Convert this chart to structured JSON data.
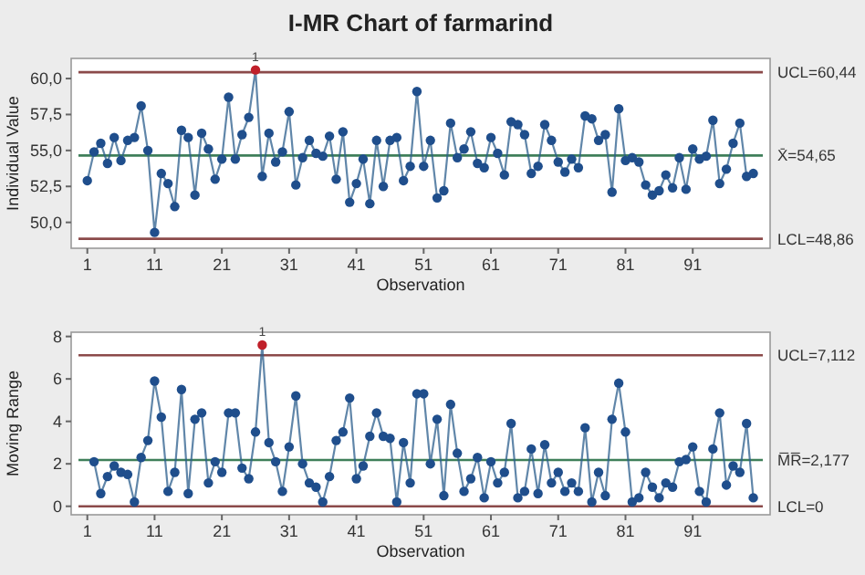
{
  "chart_data": [
    {
      "type": "line",
      "title": "I-MR Chart of farmarind",
      "xlabel": "Observation",
      "ylabel": "Individual Value",
      "x": [
        1,
        2,
        3,
        4,
        5,
        6,
        7,
        8,
        9,
        10,
        11,
        12,
        13,
        14,
        15,
        16,
        17,
        18,
        19,
        20,
        21,
        22,
        23,
        24,
        25,
        26,
        27,
        28,
        29,
        30,
        31,
        32,
        33,
        34,
        35,
        36,
        37,
        38,
        39,
        40,
        41,
        42,
        43,
        44,
        45,
        46,
        47,
        48,
        49,
        50,
        51,
        52,
        53,
        54,
        55,
        56,
        57,
        58,
        59,
        60,
        61,
        62,
        63,
        64,
        65,
        66,
        67,
        68,
        69,
        70,
        71,
        72,
        73,
        74,
        75,
        76,
        77,
        78,
        79,
        80,
        81,
        82,
        83,
        84,
        85,
        86,
        87,
        88,
        89,
        90,
        91,
        92,
        93,
        94,
        95,
        96,
        97,
        98,
        99,
        100
      ],
      "series": [
        {
          "color": "#2b5d8c",
          "values": [
            52.9,
            54.9,
            55.5,
            54.1,
            55.9,
            54.3,
            55.7,
            55.9,
            58.1,
            55.0,
            49.3,
            53.4,
            52.7,
            51.1,
            56.4,
            55.9,
            51.9,
            56.2,
            55.1,
            53.0,
            54.4,
            58.7,
            54.4,
            56.1,
            57.3,
            60.6,
            53.2,
            56.2,
            54.2,
            54.9,
            57.7,
            52.6,
            54.5,
            55.7,
            54.8,
            54.6,
            56.0,
            53.0,
            56.3,
            51.4,
            52.7,
            54.4,
            51.3,
            55.7,
            52.5,
            55.7,
            55.9,
            52.9,
            53.9,
            59.1,
            53.9,
            55.7,
            51.7,
            52.2,
            56.9,
            54.5,
            55.1,
            56.3,
            54.1,
            53.8,
            55.9,
            54.8,
            53.3,
            57.0,
            56.8,
            56.1,
            53.4,
            53.9,
            56.8,
            55.7,
            54.2,
            53.5,
            54.4,
            53.8,
            57.4,
            57.2,
            55.7,
            56.1,
            52.1,
            57.9,
            54.3,
            54.5,
            54.2,
            52.6,
            51.9,
            52.2,
            53.3,
            52.4,
            54.5,
            52.3,
            55.1,
            54.4,
            54.6,
            57.1,
            52.7,
            53.7,
            55.5,
            56.9,
            53.2,
            53.4
          ],
          "colors": [
            "#1f4e8c",
            "#1f4e8c",
            "#1f4e8c",
            "#1f4e8c",
            "#1f4e8c",
            "#1f4e8c",
            "#1f4e8c",
            "#1f4e8c",
            "#1f4e8c",
            "#1f4e8c",
            "#1f4e8c",
            "#1f4e8c",
            "#1f4e8c",
            "#1f4e8c",
            "#1f4e8c",
            "#1f4e8c",
            "#1f4e8c",
            "#1f4e8c",
            "#1f4e8c",
            "#1f4e8c",
            "#1f4e8c",
            "#1f4e8c",
            "#1f4e8c",
            "#1f4e8c",
            "#1f4e8c",
            "#c0202a",
            "#1f4e8c",
            "#1f4e8c",
            "#1f4e8c",
            "#1f4e8c",
            "#1f4e8c",
            "#1f4e8c",
            "#1f4e8c",
            "#1f4e8c",
            "#1f4e8c",
            "#1f4e8c",
            "#1f4e8c",
            "#1f4e8c",
            "#1f4e8c",
            "#1f4e8c",
            "#1f4e8c",
            "#1f4e8c",
            "#1f4e8c",
            "#1f4e8c",
            "#1f4e8c",
            "#1f4e8c",
            "#1f4e8c",
            "#1f4e8c",
            "#1f4e8c",
            "#1f4e8c",
            "#1f4e8c",
            "#1f4e8c",
            "#1f4e8c",
            "#1f4e8c",
            "#1f4e8c",
            "#1f4e8c",
            "#1f4e8c",
            "#1f4e8c",
            "#1f4e8c",
            "#1f4e8c",
            "#1f4e8c",
            "#1f4e8c",
            "#1f4e8c",
            "#1f4e8c",
            "#1f4e8c",
            "#1f4e8c",
            "#1f4e8c",
            "#1f4e8c",
            "#1f4e8c",
            "#1f4e8c",
            "#1f4e8c",
            "#1f4e8c",
            "#1f4e8c",
            "#1f4e8c",
            "#1f4e8c",
            "#1f4e8c",
            "#1f4e8c",
            "#1f4e8c",
            "#1f4e8c",
            "#1f4e8c",
            "#1f4e8c",
            "#1f4e8c",
            "#1f4e8c",
            "#1f4e8c",
            "#1f4e8c",
            "#1f4e8c",
            "#1f4e8c",
            "#1f4e8c",
            "#1f4e8c",
            "#1f4e8c",
            "#1f4e8c",
            "#1f4e8c",
            "#1f4e8c",
            "#1f4e8c",
            "#1f4e8c",
            "#1f4e8c",
            "#1f4e8c",
            "#1f4e8c",
            "#1f4e8c",
            "#1f4e8c"
          ]
        }
      ],
      "xlim": [
        -1.4,
        102.5
      ],
      "xticks": [
        1,
        11,
        21,
        31,
        41,
        51,
        61,
        71,
        81,
        91
      ],
      "ylim": [
        48.2,
        61.4
      ],
      "yticks": [
        {
          "value": 50,
          "label": "50,0"
        },
        {
          "value": 52.5,
          "label": "52,5"
        },
        {
          "value": 55,
          "label": "55,0"
        },
        {
          "value": 57.5,
          "label": "57,5"
        },
        {
          "value": 60,
          "label": "60,0"
        }
      ],
      "ref_lines": [
        {
          "axis": "y",
          "value": 60.44,
          "label": "UCL=60,44",
          "color": "#8b4a4a"
        },
        {
          "axis": "y",
          "value": 54.65,
          "label": "X̄=54,65",
          "color": "#3f7f5a"
        },
        {
          "axis": "y",
          "value": 48.86,
          "label": "LCL=48,86",
          "color": "#8b4a4a"
        }
      ],
      "annotations": [
        {
          "text": "1",
          "x": 26,
          "y": 60.6
        }
      ],
      "marker": "circle",
      "line_style": "solid",
      "grid": false
    },
    {
      "type": "line",
      "xlabel": "Observation",
      "ylabel": "Moving Range",
      "x": [
        2,
        3,
        4,
        5,
        6,
        7,
        8,
        9,
        10,
        11,
        12,
        13,
        14,
        15,
        16,
        17,
        18,
        19,
        20,
        21,
        22,
        23,
        24,
        25,
        26,
        27,
        28,
        29,
        30,
        31,
        32,
        33,
        34,
        35,
        36,
        37,
        38,
        39,
        40,
        41,
        42,
        43,
        44,
        45,
        46,
        47,
        48,
        49,
        50,
        51,
        52,
        53,
        54,
        55,
        56,
        57,
        58,
        59,
        60,
        61,
        62,
        63,
        64,
        65,
        66,
        67,
        68,
        69,
        70,
        71,
        72,
        73,
        74,
        75,
        76,
        77,
        78,
        79,
        80,
        81,
        82,
        83,
        84,
        85,
        86,
        87,
        88,
        89,
        90,
        91,
        92,
        93,
        94,
        95,
        96,
        97,
        98,
        99,
        100
      ],
      "series": [
        {
          "color": "#2b5d8c",
          "values": [
            2.1,
            0.6,
            1.4,
            1.9,
            1.6,
            1.5,
            0.2,
            2.3,
            3.1,
            5.9,
            4.2,
            0.7,
            1.6,
            5.5,
            0.6,
            4.1,
            4.4,
            1.1,
            2.1,
            1.6,
            4.4,
            4.4,
            1.8,
            1.3,
            3.5,
            7.6,
            3.0,
            2.1,
            0.7,
            2.8,
            5.2,
            2.0,
            1.1,
            0.9,
            0.2,
            1.4,
            3.1,
            3.5,
            5.1,
            1.3,
            1.9,
            3.3,
            4.4,
            3.3,
            3.2,
            0.2,
            3.0,
            1.1,
            5.3,
            5.3,
            2.0,
            4.1,
            0.5,
            4.8,
            2.5,
            0.7,
            1.3,
            2.3,
            0.4,
            2.1,
            1.1,
            1.6,
            3.9,
            0.4,
            0.7,
            2.7,
            0.6,
            2.9,
            1.1,
            1.6,
            0.7,
            1.1,
            0.7,
            3.7,
            0.2,
            1.6,
            0.5,
            4.1,
            5.8,
            3.5,
            0.2,
            0.4,
            1.6,
            0.9,
            0.4,
            1.1,
            0.9,
            2.1,
            2.2,
            2.8,
            0.7,
            0.2,
            2.7,
            4.4,
            1.0,
            1.9,
            1.6,
            3.9,
            0.4
          ],
          "colors": [
            "#1f4e8c",
            "#1f4e8c",
            "#1f4e8c",
            "#1f4e8c",
            "#1f4e8c",
            "#1f4e8c",
            "#1f4e8c",
            "#1f4e8c",
            "#1f4e8c",
            "#1f4e8c",
            "#1f4e8c",
            "#1f4e8c",
            "#1f4e8c",
            "#1f4e8c",
            "#1f4e8c",
            "#1f4e8c",
            "#1f4e8c",
            "#1f4e8c",
            "#1f4e8c",
            "#1f4e8c",
            "#1f4e8c",
            "#1f4e8c",
            "#1f4e8c",
            "#1f4e8c",
            "#1f4e8c",
            "#c0202a",
            "#1f4e8c",
            "#1f4e8c",
            "#1f4e8c",
            "#1f4e8c",
            "#1f4e8c",
            "#1f4e8c",
            "#1f4e8c",
            "#1f4e8c",
            "#1f4e8c",
            "#1f4e8c",
            "#1f4e8c",
            "#1f4e8c",
            "#1f4e8c",
            "#1f4e8c",
            "#1f4e8c",
            "#1f4e8c",
            "#1f4e8c",
            "#1f4e8c",
            "#1f4e8c",
            "#1f4e8c",
            "#1f4e8c",
            "#1f4e8c",
            "#1f4e8c",
            "#1f4e8c",
            "#1f4e8c",
            "#1f4e8c",
            "#1f4e8c",
            "#1f4e8c",
            "#1f4e8c",
            "#1f4e8c",
            "#1f4e8c",
            "#1f4e8c",
            "#1f4e8c",
            "#1f4e8c",
            "#1f4e8c",
            "#1f4e8c",
            "#1f4e8c",
            "#1f4e8c",
            "#1f4e8c",
            "#1f4e8c",
            "#1f4e8c",
            "#1f4e8c",
            "#1f4e8c",
            "#1f4e8c",
            "#1f4e8c",
            "#1f4e8c",
            "#1f4e8c",
            "#1f4e8c",
            "#1f4e8c",
            "#1f4e8c",
            "#1f4e8c",
            "#1f4e8c",
            "#1f4e8c",
            "#1f4e8c",
            "#1f4e8c",
            "#1f4e8c",
            "#1f4e8c",
            "#1f4e8c",
            "#1f4e8c",
            "#1f4e8c",
            "#1f4e8c",
            "#1f4e8c",
            "#1f4e8c",
            "#1f4e8c",
            "#1f4e8c",
            "#1f4e8c",
            "#1f4e8c",
            "#1f4e8c",
            "#1f4e8c",
            "#1f4e8c",
            "#1f4e8c",
            "#1f4e8c",
            "#1f4e8c"
          ]
        }
      ],
      "xlim": [
        -1.4,
        102.5
      ],
      "xticks": [
        1,
        11,
        21,
        31,
        41,
        51,
        61,
        71,
        81,
        91
      ],
      "ylim": [
        -0.4,
        8.2
      ],
      "yticks": [
        0,
        2,
        4,
        6,
        8
      ],
      "ref_lines": [
        {
          "axis": "y",
          "value": 7.112,
          "label": "UCL=7,112",
          "color": "#8b4a4a"
        },
        {
          "axis": "y",
          "value": 2.177,
          "label": "M̅R̅=2,177",
          "color": "#3f7f5a"
        },
        {
          "axis": "y",
          "value": 0,
          "label": "LCL=0",
          "color": "#8b4a4a"
        }
      ],
      "annotations": [
        {
          "text": "1",
          "x": 27,
          "y": 7.6
        }
      ],
      "marker": "circle",
      "line_style": "solid",
      "grid": false
    }
  ]
}
